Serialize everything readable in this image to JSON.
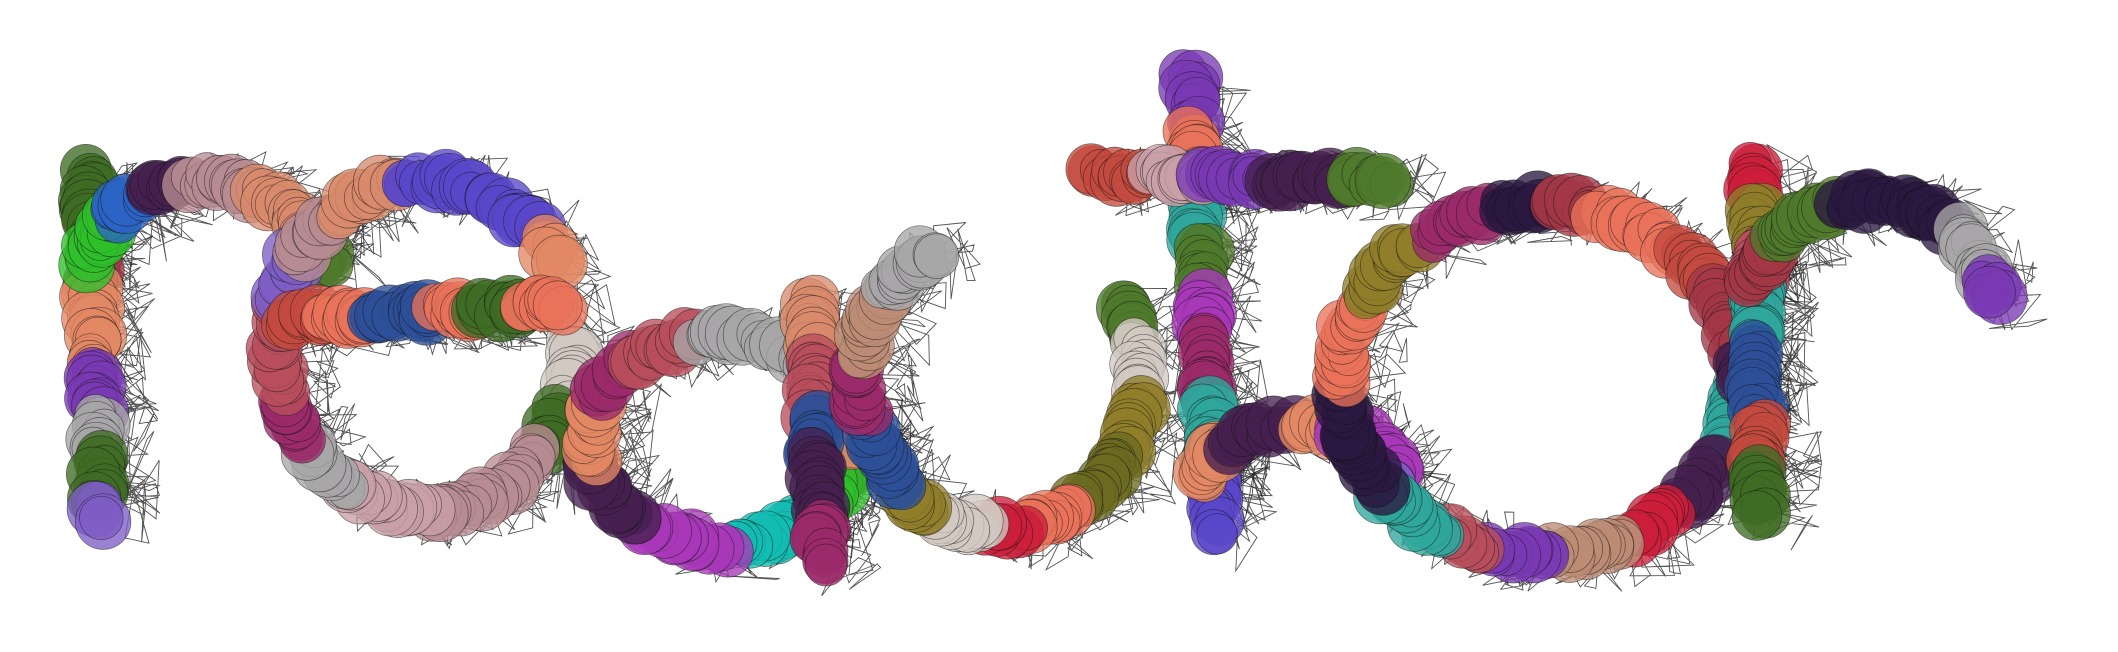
{
  "artwork": {
    "word": "reactor",
    "mesh_color": "#1a1a1a",
    "palette": [
      "#e9725a",
      "#c44a3f",
      "#d98a6b",
      "#b94e5c",
      "#a33747",
      "#2a1840",
      "#45204f",
      "#c9a0a8",
      "#b78c92",
      "#8f7e2a",
      "#6b6a20",
      "#4f7a2c",
      "#3f6b24",
      "#2fbf2a",
      "#a838b8",
      "#7a3ab3",
      "#5a47c9",
      "#2b64c4",
      "#2d4f99",
      "#12bcb2",
      "#2fa79c",
      "#a8a6a8",
      "#d2c9c2",
      "#cc1f3b",
      "#9b2a6a",
      "#bd8c75",
      "#e38864",
      "#7d5dc4"
    ]
  }
}
